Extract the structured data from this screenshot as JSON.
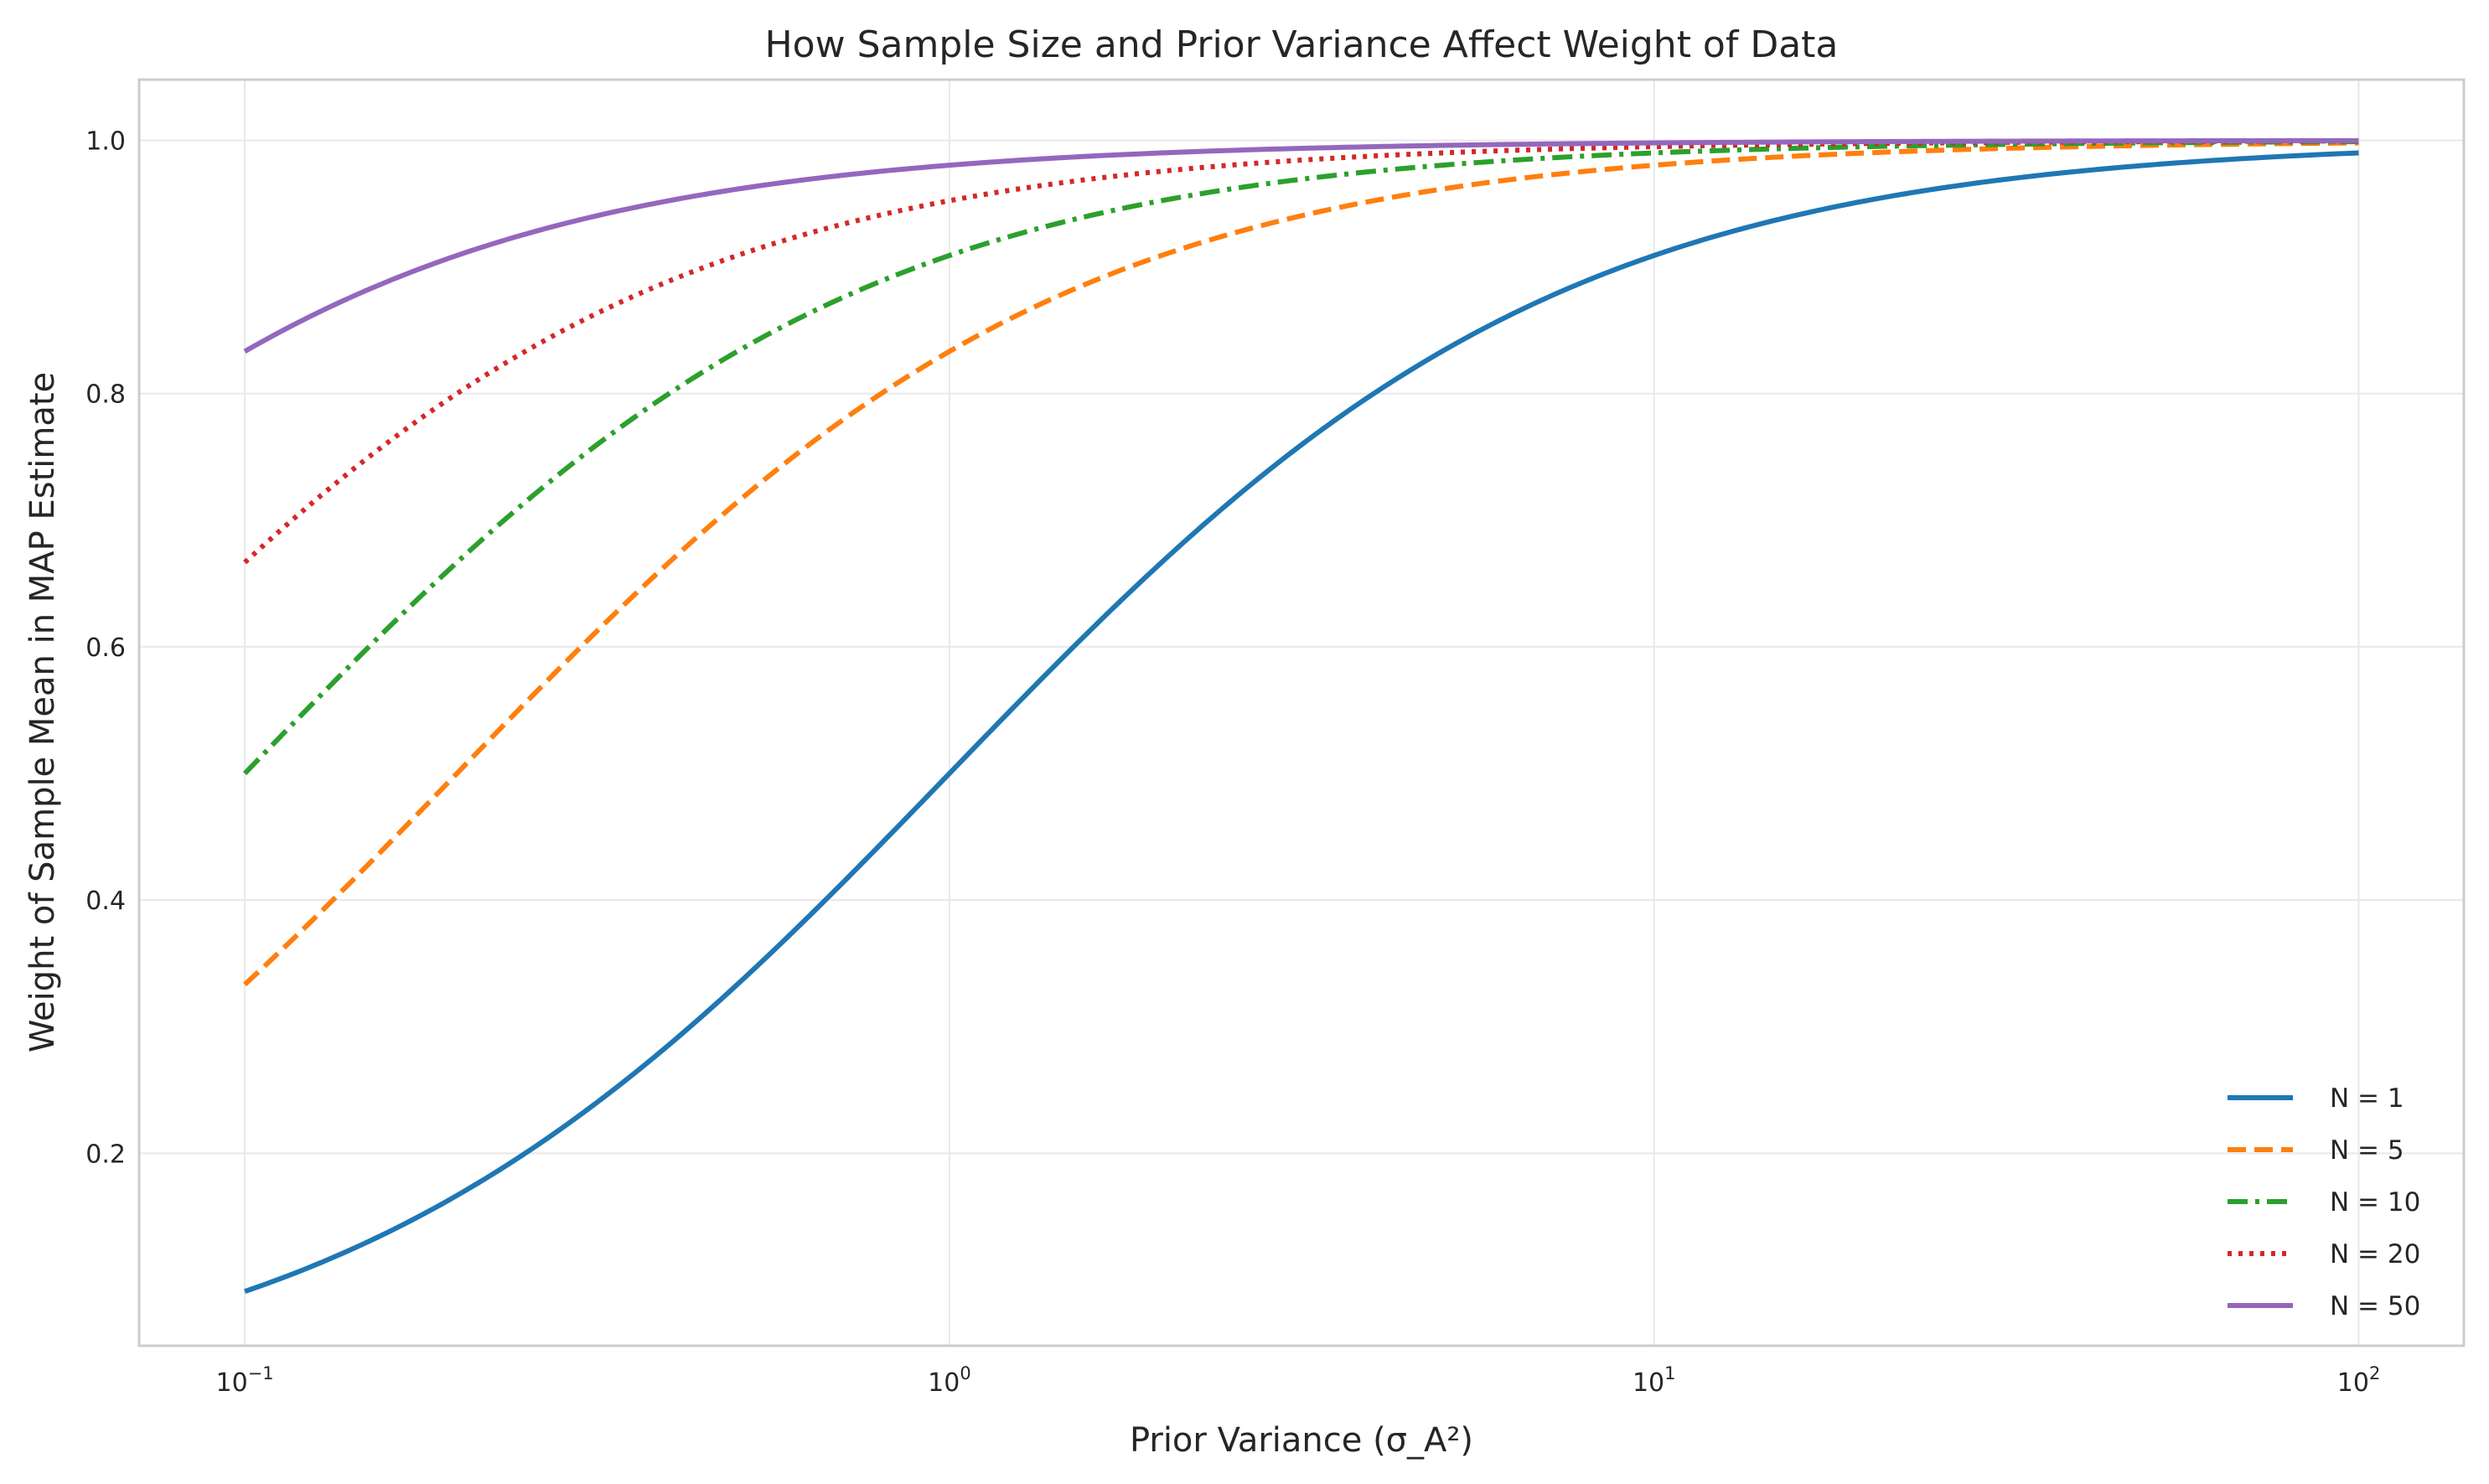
{
  "chart_data": {
    "type": "line",
    "title": "How Sample Size and Prior Variance Affect Weight of Data",
    "xlabel": "Prior Variance (σ_A²)",
    "ylabel": "Weight of Sample Mean in MAP Estimate",
    "xscale": "log",
    "xlim": [
      0.0708,
      141
    ],
    "ylim": [
      0.048,
      1.048
    ],
    "x_range": [
      0.1,
      100
    ],
    "x_ticks": [
      {
        "value": 0.1,
        "base": "10",
        "exp": "−1"
      },
      {
        "value": 1,
        "base": "10",
        "exp": "0"
      },
      {
        "value": 10,
        "base": "10",
        "exp": "1"
      },
      {
        "value": 100,
        "base": "10",
        "exp": "2"
      }
    ],
    "y_ticks": [
      {
        "value": 0.2,
        "label": "0.2"
      },
      {
        "value": 0.4,
        "label": "0.4"
      },
      {
        "value": 0.6,
        "label": "0.6"
      },
      {
        "value": 0.8,
        "label": "0.8"
      },
      {
        "value": 1.0,
        "label": "1.0"
      }
    ],
    "grid": true,
    "legend_position": "bottom-right",
    "series": [
      {
        "name": "N = 1",
        "N": 1,
        "color": "#1f77b4",
        "dash": "solid"
      },
      {
        "name": "N = 5",
        "N": 5,
        "color": "#ff7f0e",
        "dash": "dashed"
      },
      {
        "name": "N = 10",
        "N": 10,
        "color": "#2ca02c",
        "dash": "dashdot"
      },
      {
        "name": "N = 20",
        "N": 20,
        "color": "#d62728",
        "dash": "dotted"
      },
      {
        "name": "N = 50",
        "N": 50,
        "color": "#9467bd",
        "dash": "solid"
      }
    ]
  }
}
